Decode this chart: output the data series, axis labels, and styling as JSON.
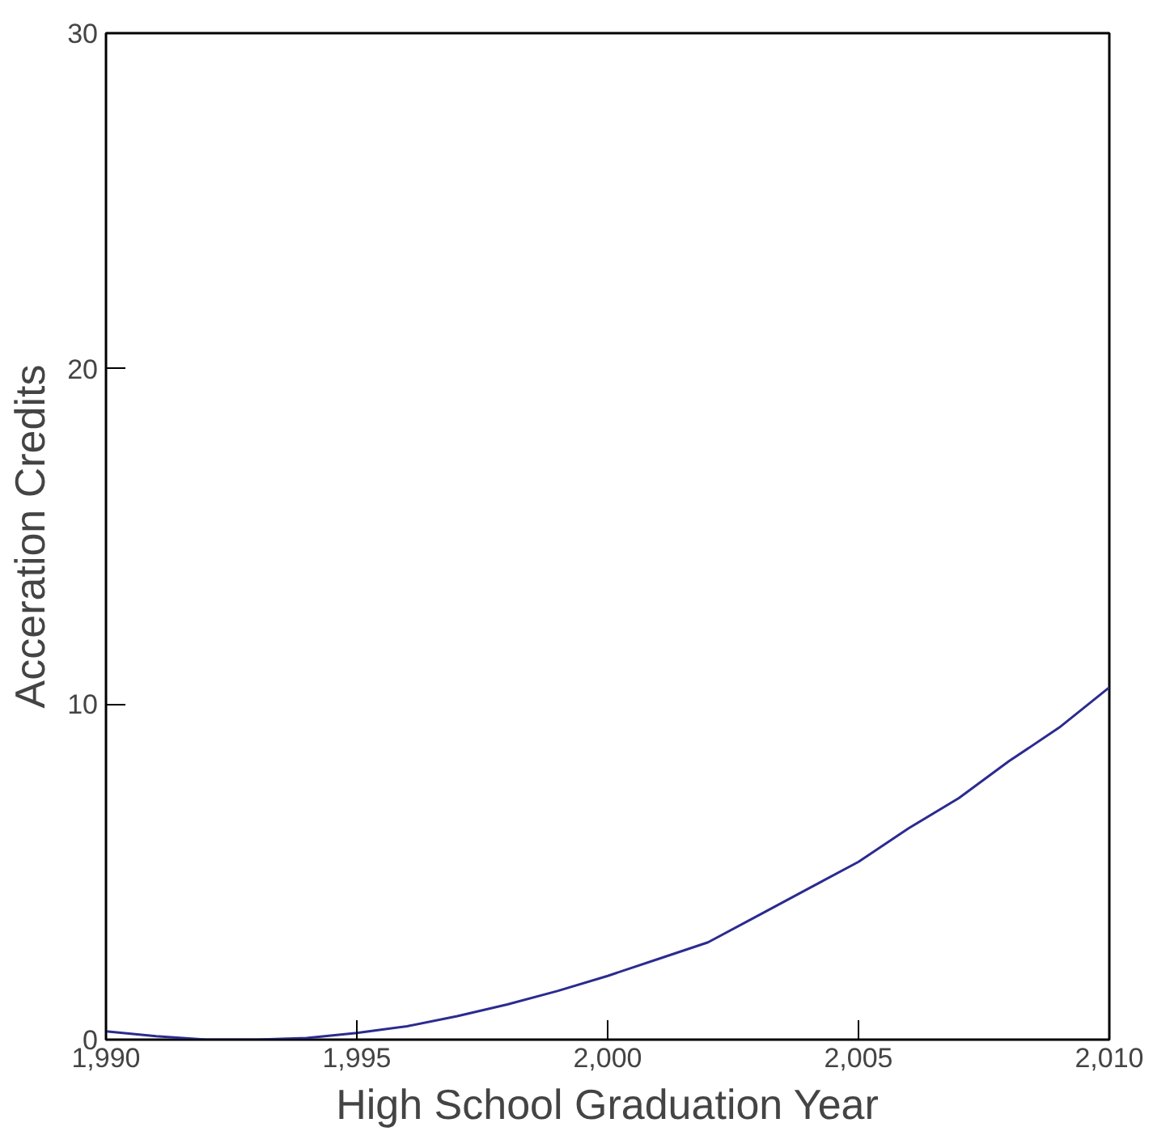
{
  "chart_data": {
    "type": "line",
    "xlabel": "High School Graduation Year",
    "ylabel": "Acceration Credits",
    "x": [
      1990,
      1991,
      1992,
      1993,
      1994,
      1995,
      1996,
      1997,
      1998,
      1999,
      2000,
      2001,
      2002,
      2003,
      2004,
      2005,
      2006,
      2007,
      2008,
      2009,
      2010
    ],
    "series": [
      {
        "color": "#2b2b90",
        "values": [
          0.25,
          0.1,
          0.0,
          0.0,
          0.05,
          0.2,
          0.4,
          0.7,
          1.05,
          1.45,
          1.9,
          2.4,
          2.9,
          3.7,
          4.5,
          5.3,
          6.3,
          7.2,
          8.3,
          9.3,
          10.5
        ]
      }
    ],
    "xlim": [
      1990,
      2010
    ],
    "ylim": [
      0,
      30
    ],
    "xticks": [
      {
        "value": 1990,
        "label": "1,990"
      },
      {
        "value": 1995,
        "label": "1,995"
      },
      {
        "value": 2000,
        "label": "2,000"
      },
      {
        "value": 2005,
        "label": "2,005"
      },
      {
        "value": 2010,
        "label": "2,010"
      }
    ],
    "yticks": [
      0,
      10,
      20,
      30
    ],
    "grid": false,
    "marker": "none",
    "line_style": "solid"
  }
}
